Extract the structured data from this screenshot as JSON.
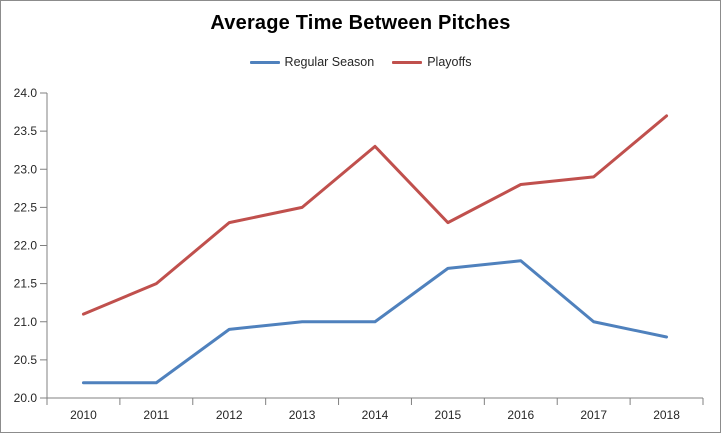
{
  "chart_data": {
    "type": "line",
    "title": "Average Time Between Pitches",
    "categories": [
      "2010",
      "2011",
      "2012",
      "2013",
      "2014",
      "2015",
      "2016",
      "2017",
      "2018"
    ],
    "series": [
      {
        "name": "Regular Season",
        "color": "#4F81BD",
        "values": [
          20.2,
          20.2,
          20.9,
          21.0,
          21.0,
          21.7,
          21.8,
          21.0,
          20.8
        ]
      },
      {
        "name": "Playoffs",
        "color": "#C0504D",
        "values": [
          21.1,
          21.5,
          22.3,
          22.5,
          23.3,
          22.3,
          22.8,
          22.9,
          23.7
        ]
      }
    ],
    "xlabel": "",
    "ylabel": "",
    "ylim": [
      20.0,
      24.0
    ],
    "ytick_step": 0.5,
    "ytick_labels": [
      "20.0",
      "20.5",
      "21.0",
      "21.5",
      "22.0",
      "22.5",
      "23.0",
      "23.5",
      "24.0"
    ],
    "legend_position": "top",
    "grid": false,
    "axis_color": "#808080",
    "text_color": "#262626",
    "border_color": "#8C8C8C",
    "background": "#FFFFFF"
  }
}
